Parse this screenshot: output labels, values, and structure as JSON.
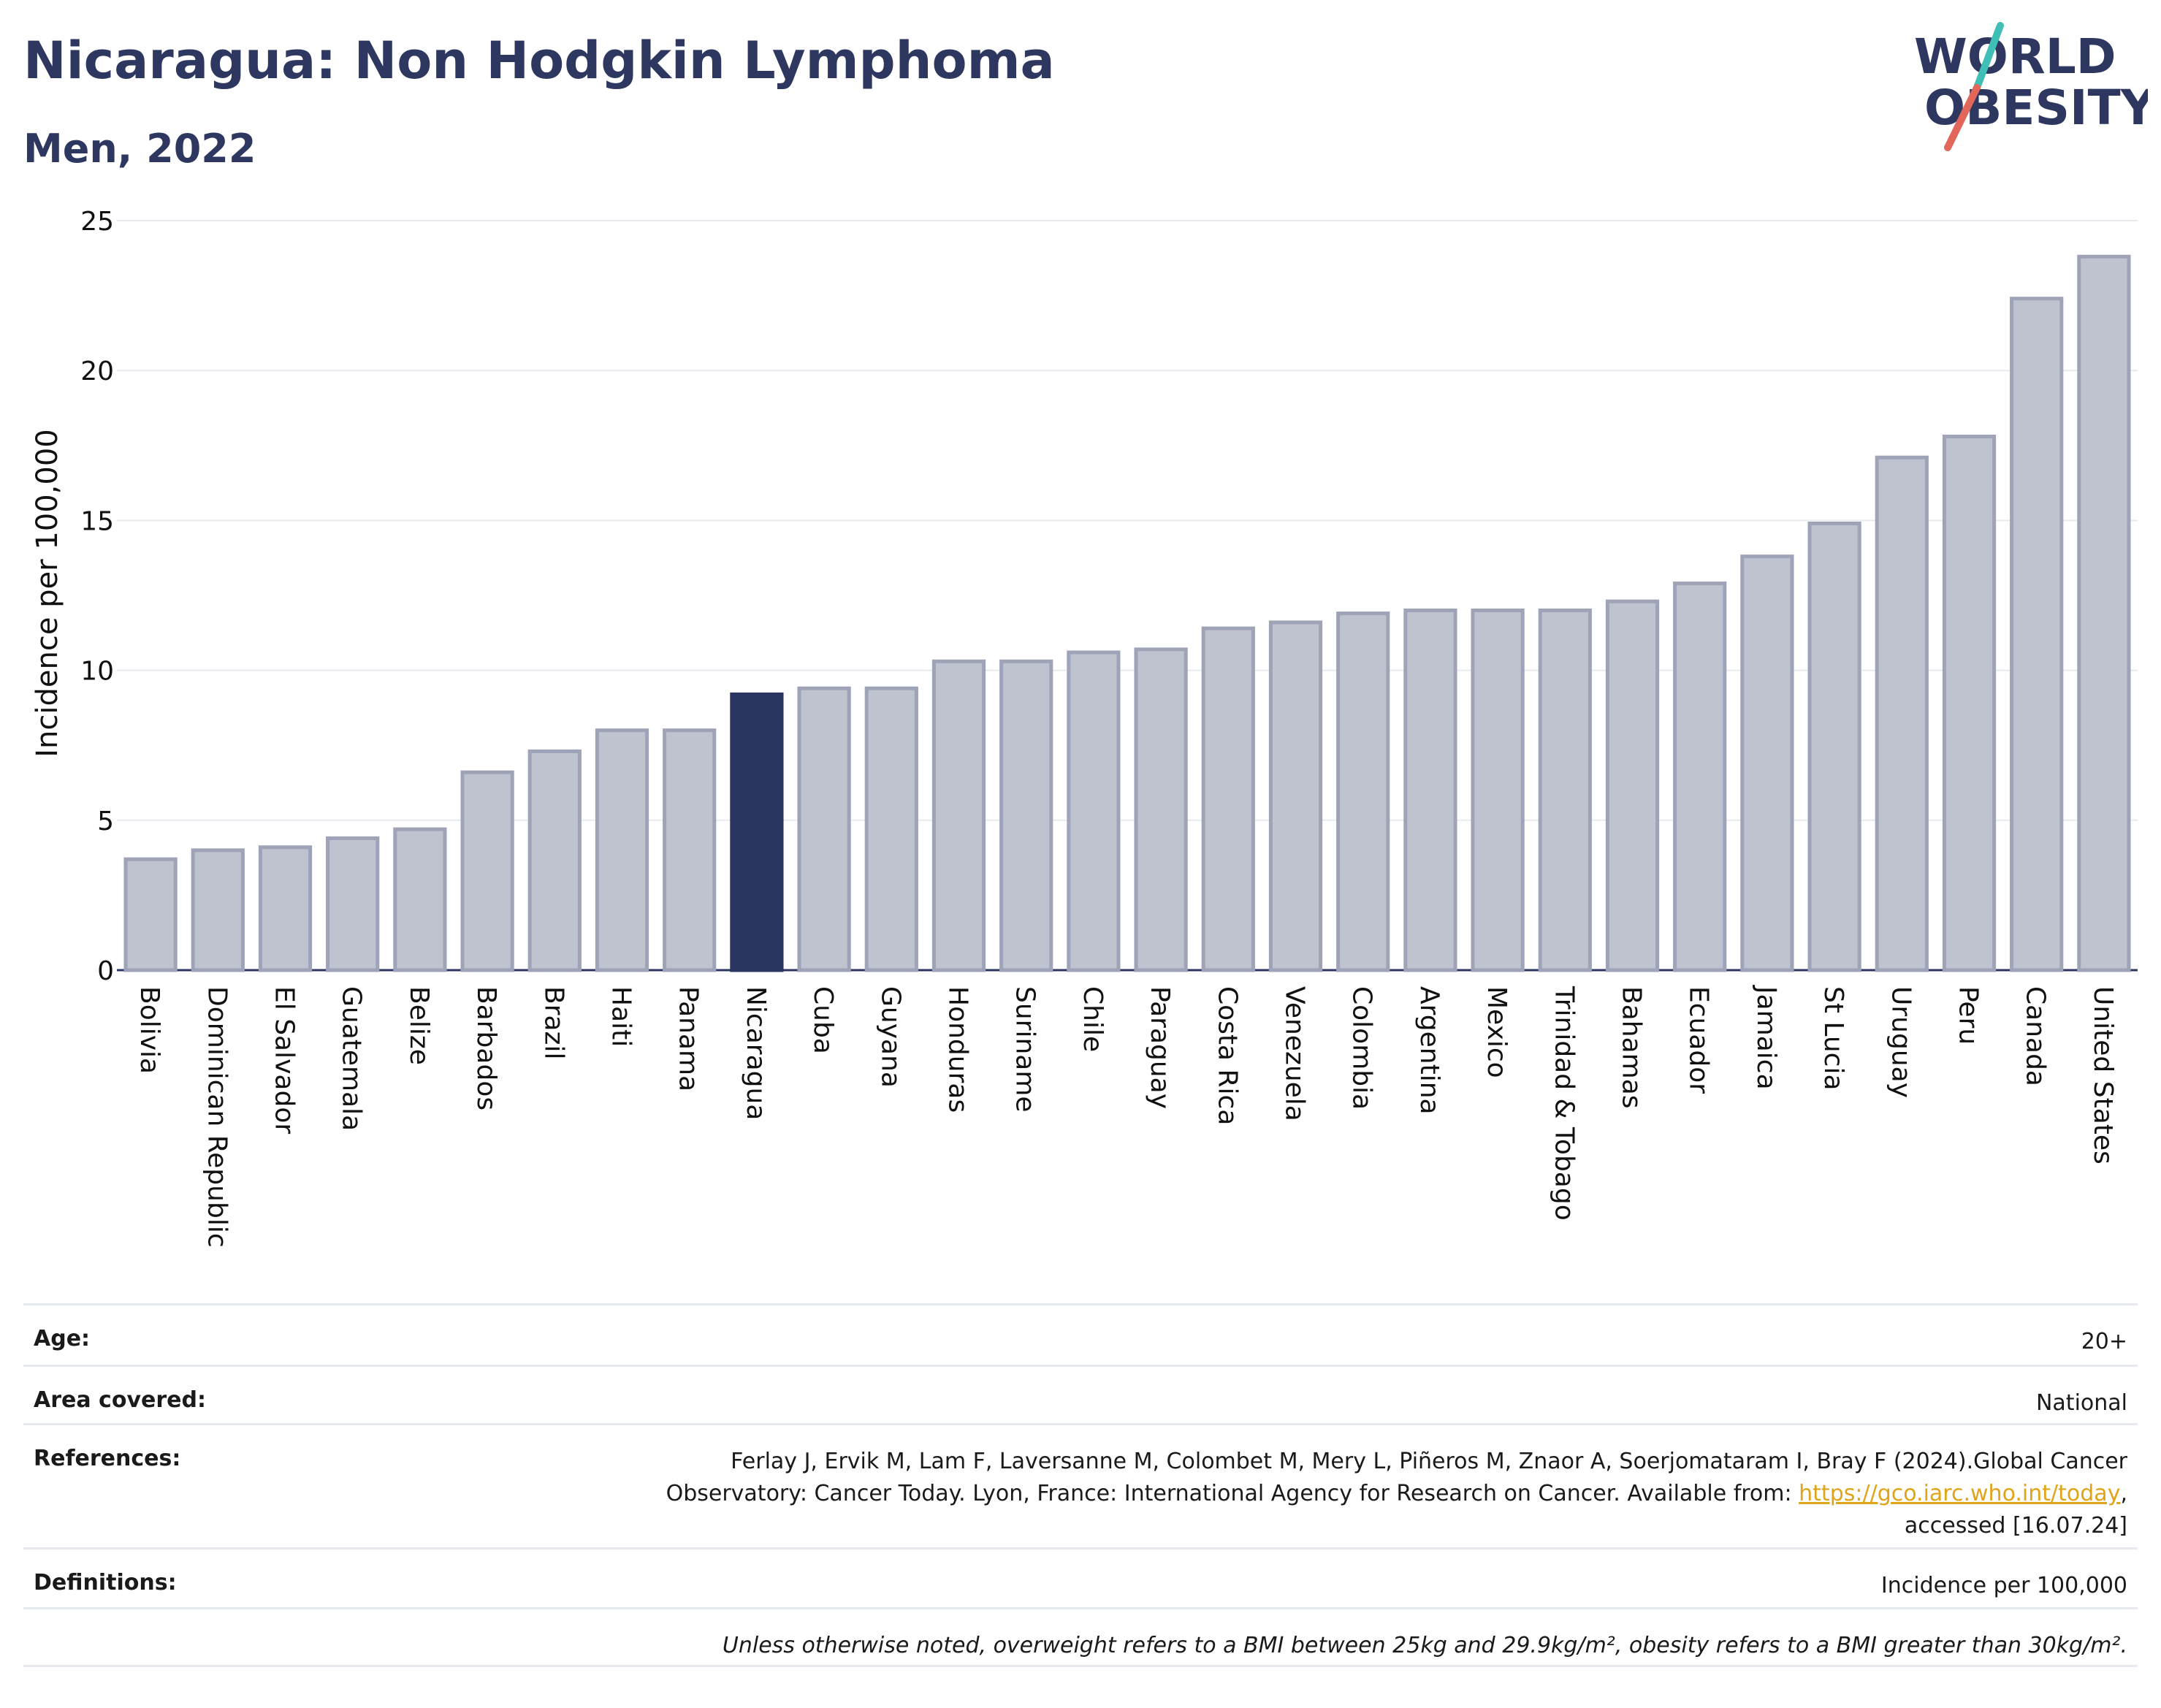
{
  "header": {
    "title": "Nicaragua: Non Hodgkin Lymphoma",
    "subtitle": "Men, 2022"
  },
  "logo": {
    "line1": "WORLD",
    "line2": "OBESITY"
  },
  "colors": {
    "bar": "#bfc2cf",
    "bar_border": "#9ea3b8",
    "highlight": "#2b3561",
    "grid": "#e8eaef",
    "axis": "#2b3561",
    "logo_text": "#2d3760",
    "logo_teal": "#3fbfb6",
    "logo_red": "#e2675a",
    "link": "#e0a419"
  },
  "chart_data": {
    "type": "bar",
    "ylabel": "Incidence per 100,000",
    "ylim": [
      0,
      25
    ],
    "yticks": [
      0,
      5,
      10,
      15,
      20,
      25
    ],
    "grid": true,
    "highlight": "Nicaragua",
    "categories": [
      "Bolivia",
      "Dominican Republic",
      "El Salvador",
      "Guatemala",
      "Belize",
      "Barbados",
      "Brazil",
      "Haiti",
      "Panama",
      "Nicaragua",
      "Cuba",
      "Guyana",
      "Honduras",
      "Suriname",
      "Chile",
      "Paraguay",
      "Costa Rica",
      "Venezuela",
      "Colombia",
      "Argentina",
      "Mexico",
      "Trinidad & Tobago",
      "Bahamas",
      "Ecuador",
      "Jamaica",
      "St Lucia",
      "Uruguay",
      "Peru",
      "Canada",
      "United States"
    ],
    "values": [
      3.7,
      4.0,
      4.1,
      4.4,
      4.7,
      6.6,
      7.3,
      8.0,
      8.0,
      9.2,
      9.4,
      9.4,
      10.3,
      10.3,
      10.6,
      10.7,
      11.4,
      11.6,
      11.9,
      12.0,
      12.0,
      12.0,
      12.3,
      12.9,
      13.8,
      14.9,
      17.1,
      17.8,
      22.4,
      23.8
    ]
  },
  "info": {
    "age_label": "Age:",
    "age_value": "20+",
    "area_label": "Area covered:",
    "area_value": "National",
    "references_label": "References:",
    "references_text_1": "Ferlay J, Ervik M, Lam F, Laversanne M, Colombet M, Mery L, Piñeros M, Znaor A, Soerjomataram I, Bray F (2024).Global Cancer",
    "references_text_2": "Observatory: Cancer Today. Lyon, France: International Agency for Research on Cancer. Available from: ",
    "references_link": "https://gco.iarc.who.int/today",
    "references_text_3": ",",
    "references_text_4": "accessed [16.07.24]",
    "definitions_label": "Definitions:",
    "definitions_value": "Incidence per 100,000",
    "note": "Unless otherwise noted, overweight refers to a BMI between 25kg and 29.9kg/m², obesity refers to a BMI greater than 30kg/m²."
  }
}
